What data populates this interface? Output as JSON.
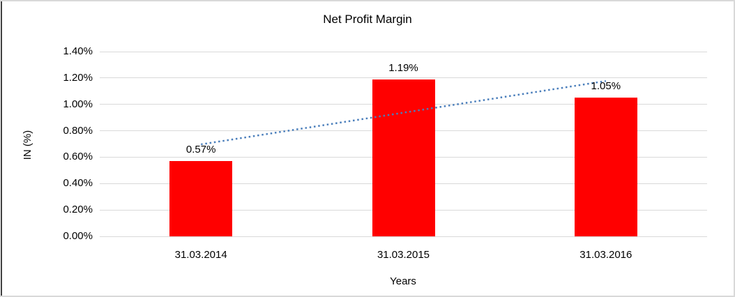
{
  "window": {
    "background": "#ffffff",
    "frame_border_color": "#d9d9d9",
    "left_edge_color": "#404040"
  },
  "chart_data": {
    "type": "bar",
    "title": "Net Profit Margin",
    "categories": [
      "31.03.2014",
      "31.03.2015",
      "31.03.2016"
    ],
    "series": [
      {
        "name": "Net Profit Margin",
        "values": [
          0.57,
          1.19,
          1.05
        ]
      }
    ],
    "data_labels": [
      "0.57%",
      "1.19%",
      "1.05%"
    ],
    "xlabel": "Years",
    "ylabel": "IN (%)",
    "ylim": [
      0,
      1.4
    ],
    "yticks": [
      {
        "value": 0.0,
        "label": "0.00%"
      },
      {
        "value": 0.2,
        "label": "0.20%"
      },
      {
        "value": 0.4,
        "label": "0.40%"
      },
      {
        "value": 0.6,
        "label": "0.60%"
      },
      {
        "value": 0.8,
        "label": "0.80%"
      },
      {
        "value": 1.0,
        "label": "1.00%"
      },
      {
        "value": 1.2,
        "label": "1.20%"
      },
      {
        "value": 1.4,
        "label": "1.40%"
      }
    ],
    "grid": true,
    "legend": "none",
    "bar_color": "#ff0000",
    "gridline_color": "#d9d9d9",
    "trendline": {
      "type": "linear",
      "style": "dotted",
      "color": "#4a7ebb",
      "start_value": 0.697,
      "end_value": 1.177
    }
  }
}
